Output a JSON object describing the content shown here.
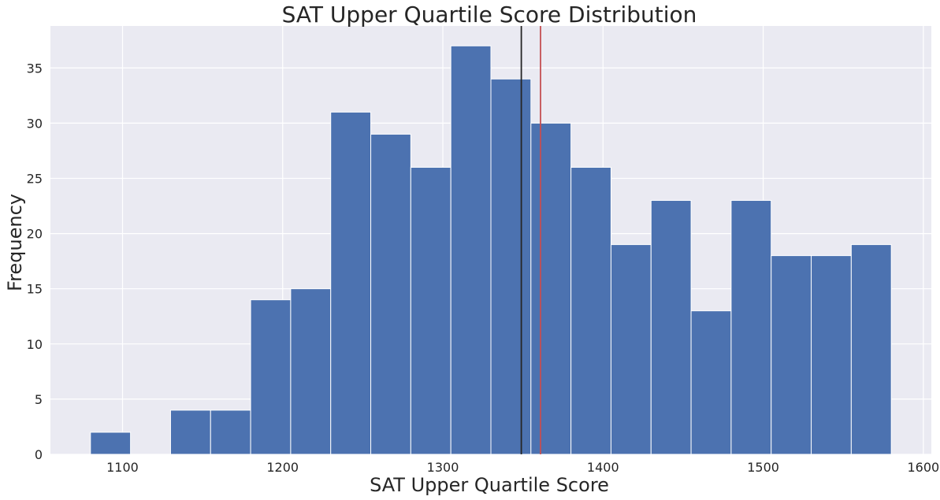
{
  "chart_data": {
    "type": "bar",
    "title": "SAT Upper Quartile Score Distribution",
    "xlabel": "SAT Upper Quartile Score",
    "ylabel": "Frequency",
    "xlim": [
      1055,
      1605
    ],
    "ylim": [
      0,
      38.8
    ],
    "xticks": [
      1100,
      1200,
      1300,
      1400,
      1500,
      1600
    ],
    "yticks": [
      0,
      5,
      10,
      15,
      20,
      25,
      30,
      35
    ],
    "bin_edges": [
      1080,
      1105,
      1130,
      1155,
      1180,
      1205,
      1230,
      1255,
      1280,
      1305,
      1330,
      1355,
      1380,
      1405,
      1430,
      1455,
      1480,
      1505,
      1530,
      1555,
      1580
    ],
    "values": [
      2,
      0,
      4,
      4,
      14,
      15,
      31,
      29,
      26,
      37,
      34,
      30,
      26,
      19,
      23,
      13,
      23,
      18,
      18,
      19
    ],
    "vlines": [
      {
        "x": 1349,
        "color": "#262626"
      },
      {
        "x": 1361,
        "color": "#c44e52"
      }
    ],
    "grid": true,
    "colors": {
      "bar": "#4c72b0",
      "background": "#eaeaf2",
      "grid": "#ffffff"
    }
  }
}
